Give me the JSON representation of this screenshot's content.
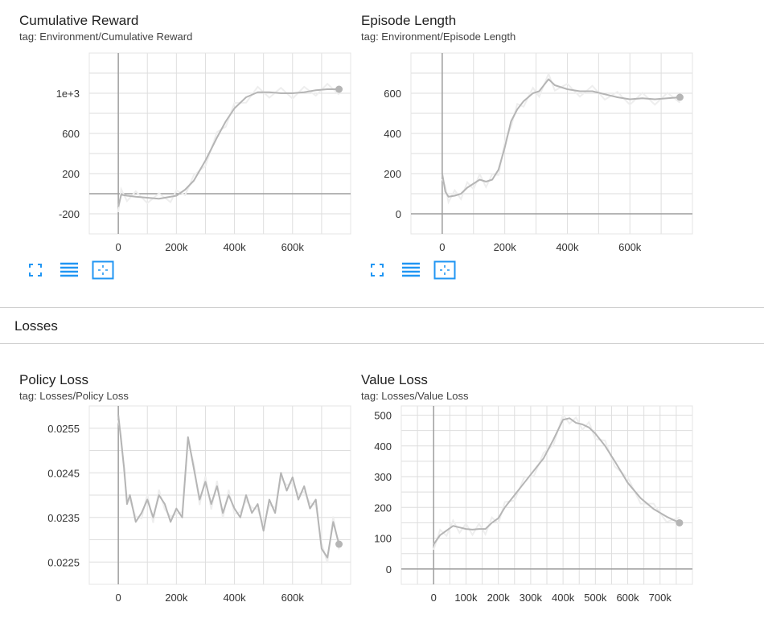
{
  "section": {
    "title": "Losses"
  },
  "colors": {
    "accent": "#2196f3",
    "line_smooth": "#b5b5b5",
    "line_raw": "#eeeeee",
    "axis": "#9e9e9e",
    "grid": "#dedede"
  },
  "icons": {
    "fit": "fit-to-data-icon",
    "log": "toggle-log-scale-icon",
    "expand": "expand-chart-icon"
  },
  "cards": [
    {
      "title": "Cumulative Reward",
      "tag": "tag: Environment/Cumulative Reward",
      "chart_data": {
        "type": "line",
        "x_ticks": [
          0,
          200000,
          400000,
          600000
        ],
        "x_tick_labels": [
          "0",
          "200k",
          "400k",
          "600k"
        ],
        "y_ticks": [
          -200,
          200,
          600,
          1000
        ],
        "y_tick_labels": [
          "-200",
          "200",
          "600",
          "1e+3"
        ],
        "xlim": [
          -100000,
          800000
        ],
        "ylim": [
          -400,
          1400
        ],
        "series": [
          {
            "x": [
              0,
              10000,
              30000,
              60000,
              100000,
              140000,
              180000,
              200000,
              230000,
              260000,
              300000,
              340000,
              370000,
              400000,
              440000,
              480000,
              520000,
              560000,
              600000,
              640000,
              680000,
              720000,
              760000
            ],
            "y": [
              -130,
              -10,
              -20,
              -30,
              -40,
              -50,
              -30,
              -20,
              40,
              130,
              330,
              560,
              720,
              850,
              960,
              1010,
              1010,
              1000,
              1000,
              1010,
              1030,
              1040,
              1040
            ]
          }
        ]
      }
    },
    {
      "title": "Episode Length",
      "tag": "tag: Environment/Episode Length",
      "chart_data": {
        "type": "line",
        "x_ticks": [
          0,
          200000,
          400000,
          600000
        ],
        "x_tick_labels": [
          "0",
          "200k",
          "400k",
          "600k"
        ],
        "y_ticks": [
          0,
          200,
          400,
          600
        ],
        "y_tick_labels": [
          "0",
          "200",
          "400",
          "600"
        ],
        "xlim": [
          -100000,
          800000
        ],
        "ylim": [
          -100,
          800
        ],
        "series": [
          {
            "x": [
              0,
              10000,
              20000,
              40000,
              60000,
              80000,
              100000,
              120000,
              140000,
              160000,
              180000,
              200000,
              220000,
              240000,
              260000,
              290000,
              310000,
              340000,
              360000,
              400000,
              440000,
              480000,
              520000,
              560000,
              600000,
              640000,
              680000,
              720000,
              760000
            ],
            "y": [
              200,
              110,
              85,
              90,
              100,
              130,
              150,
              170,
              160,
              170,
              220,
              330,
              460,
              520,
              560,
              600,
              610,
              670,
              640,
              620,
              610,
              610,
              595,
              580,
              570,
              575,
              570,
              575,
              580
            ]
          }
        ]
      }
    },
    {
      "title": "Policy Loss",
      "tag": "tag: Losses/Policy Loss",
      "chart_data": {
        "type": "line",
        "x_ticks": [
          0,
          200000,
          400000,
          600000
        ],
        "x_tick_labels": [
          "0",
          "200k",
          "400k",
          "600k"
        ],
        "y_ticks": [
          0.0225,
          0.0235,
          0.0245,
          0.0255
        ],
        "y_tick_labels": [
          "0.0225",
          "0.0235",
          "0.0245",
          "0.0255"
        ],
        "xlim": [
          -100000,
          800000
        ],
        "ylim": [
          0.022,
          0.026
        ],
        "series": [
          {
            "x": [
              0,
              10000,
              20000,
              30000,
              40000,
              60000,
              80000,
              100000,
              120000,
              140000,
              160000,
              180000,
              200000,
              220000,
              240000,
              260000,
              280000,
              300000,
              320000,
              340000,
              360000,
              380000,
              400000,
              420000,
              440000,
              460000,
              480000,
              500000,
              520000,
              540000,
              560000,
              580000,
              600000,
              620000,
              640000,
              660000,
              680000,
              700000,
              720000,
              740000,
              760000
            ],
            "y": [
              0.0258,
              0.0252,
              0.0246,
              0.0238,
              0.024,
              0.0234,
              0.0236,
              0.0239,
              0.0235,
              0.024,
              0.0238,
              0.0234,
              0.0237,
              0.0235,
              0.0253,
              0.0246,
              0.0239,
              0.0243,
              0.0238,
              0.0242,
              0.0236,
              0.024,
              0.0237,
              0.0235,
              0.024,
              0.0236,
              0.0238,
              0.0232,
              0.0239,
              0.0236,
              0.0245,
              0.0241,
              0.0244,
              0.0239,
              0.0242,
              0.0237,
              0.0239,
              0.0228,
              0.0226,
              0.0234,
              0.0229
            ]
          }
        ]
      }
    },
    {
      "title": "Value Loss",
      "tag": "tag: Losses/Value Loss",
      "chart_data": {
        "type": "line",
        "x_ticks": [
          0,
          100000,
          200000,
          300000,
          400000,
          500000,
          600000,
          700000
        ],
        "x_tick_labels": [
          "0",
          "100k",
          "200k",
          "300k",
          "400k",
          "500k",
          "600k",
          "700k"
        ],
        "y_ticks": [
          0,
          100,
          200,
          300,
          400,
          500
        ],
        "y_tick_labels": [
          "0",
          "100",
          "200",
          "300",
          "400",
          "500"
        ],
        "xlim": [
          -100000,
          800000
        ],
        "ylim": [
          -50,
          530
        ],
        "series": [
          {
            "x": [
              0,
              20000,
              40000,
              60000,
              80000,
              100000,
              120000,
              140000,
              160000,
              180000,
              200000,
              220000,
              250000,
              280000,
              310000,
              340000,
              370000,
              400000,
              420000,
              440000,
              460000,
              480000,
              500000,
              530000,
              560000,
              600000,
              640000,
              680000,
              720000,
              760000
            ],
            "y": [
              80,
              110,
              125,
              140,
              135,
              130,
              128,
              130,
              130,
              150,
              165,
              200,
              240,
              280,
              320,
              360,
              420,
              485,
              490,
              475,
              470,
              460,
              440,
              400,
              350,
              280,
              230,
              195,
              170,
              150
            ]
          }
        ]
      }
    }
  ]
}
